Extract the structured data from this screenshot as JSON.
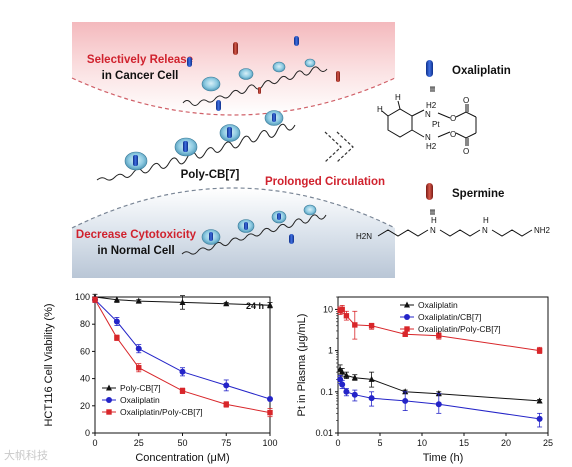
{
  "scheme": {
    "release_line1": "Selectively Release",
    "release_line2": "in Cancer Cell",
    "polymer_label": "Poly-CB[7]",
    "circulation_label": "Prolonged Circulation",
    "decrease_line1": "Decrease Cytotoxicity",
    "decrease_line2": "in Normal Cell",
    "oxaliplatin_label": "Oxaliplatin",
    "spermine_label": "Spermine",
    "equiv_symbol": "III",
    "struct_ox": {
      "h2_top": "H2",
      "n_top": "N",
      "pt": "Pt",
      "n_bot": "N",
      "h2_bot": "H2",
      "o1": "O",
      "o2": "O",
      "o3": "O",
      "o4": "O",
      "h1": "H",
      "h2": "H"
    },
    "struct_sp": {
      "nh2_left": "H2N",
      "nh_a": "N",
      "h_a": "H",
      "nh_b": "N",
      "h_b": "H",
      "nh2_right": "NH2"
    },
    "colors": {
      "release_red": "#d0222e",
      "oxaliplatin_blue": "#1f4fb8",
      "spermine_red": "#b0342a",
      "cb_ring": "#7fc4de"
    }
  },
  "watermark": "大帆科技",
  "chart_data": [
    {
      "type": "line",
      "title": "",
      "annotation": "24 h",
      "xlabel": "Concentration (μM)",
      "ylabel": "HCT116 Cell Viability (%)",
      "xlim": [
        0,
        100
      ],
      "ylim": [
        0,
        100
      ],
      "x_ticks": [
        0,
        25,
        50,
        75,
        100
      ],
      "y_ticks": [
        0,
        20,
        40,
        60,
        80,
        100
      ],
      "legend_position": "bottom-left",
      "series": [
        {
          "name": "Poly-CB[7]",
          "color": "#111111",
          "marker": "triangle",
          "x": [
            0,
            12.5,
            25,
            50,
            75,
            100
          ],
          "y": [
            100,
            98,
            97,
            96,
            95,
            94
          ],
          "err": [
            2,
            2,
            1,
            5,
            1,
            2
          ]
        },
        {
          "name": "Oxaliplatin",
          "color": "#2424c8",
          "marker": "circle",
          "x": [
            0,
            12.5,
            25,
            50,
            75,
            100
          ],
          "y": [
            98,
            82,
            62,
            45,
            35,
            25
          ],
          "err": [
            2,
            3,
            3,
            3,
            4,
            1
          ]
        },
        {
          "name": "Oxaliplatin/Poly-CB[7]",
          "color": "#d8262a",
          "marker": "square",
          "x": [
            0,
            12.5,
            25,
            50,
            75,
            100
          ],
          "y": [
            98,
            70,
            48,
            31,
            21,
            15
          ],
          "err": [
            2,
            2,
            3,
            2,
            2,
            3
          ]
        }
      ]
    },
    {
      "type": "line",
      "title": "",
      "xlabel": "Time (h)",
      "ylabel": "Pt in Plasma (μg/mL)",
      "xlim": [
        0,
        25
      ],
      "ylim": [
        0.01,
        20
      ],
      "y_scale": "log",
      "x_ticks": [
        0,
        5,
        10,
        15,
        20,
        25
      ],
      "y_ticks": [
        0.01,
        0.1,
        1,
        10
      ],
      "y_tick_labels": [
        "0.01",
        "0.1",
        "1",
        "10"
      ],
      "legend_position": "top-right",
      "series": [
        {
          "name": "Oxaliplatin",
          "color": "#111111",
          "marker": "triangle",
          "x": [
            0.25,
            0.5,
            1,
            2,
            4,
            8,
            12,
            24
          ],
          "y": [
            0.35,
            0.3,
            0.25,
            0.22,
            0.2,
            0.1,
            0.09,
            0.06
          ],
          "err_lo": [
            0.27,
            0.24,
            0.21,
            0.19,
            0.13,
            0.09,
            0.08,
            0.055
          ],
          "err_hi": [
            0.45,
            0.37,
            0.3,
            0.26,
            0.3,
            0.11,
            0.1,
            0.065
          ]
        },
        {
          "name": "Oxaliplatin/CB[7]",
          "color": "#2424c8",
          "marker": "circle",
          "x": [
            0.25,
            0.5,
            1,
            2,
            4,
            8,
            12,
            24
          ],
          "y": [
            0.2,
            0.15,
            0.1,
            0.085,
            0.07,
            0.06,
            0.05,
            0.022
          ],
          "err_lo": [
            0.16,
            0.12,
            0.08,
            0.06,
            0.045,
            0.035,
            0.03,
            0.014
          ],
          "err_hi": [
            0.25,
            0.19,
            0.12,
            0.11,
            0.1,
            0.1,
            0.09,
            0.03
          ]
        },
        {
          "name": "Oxaliplatin/Poly-CB[7]",
          "color": "#d8262a",
          "marker": "square",
          "x": [
            0.25,
            0.5,
            1,
            2,
            4,
            8,
            12,
            24
          ],
          "y": [
            9.5,
            10,
            7,
            4.2,
            4,
            2.5,
            2.3,
            1
          ],
          "err_lo": [
            7.5,
            8,
            5.5,
            1.9,
            3.3,
            2.2,
            1.9,
            0.85
          ],
          "err_hi": [
            11.5,
            12.5,
            9,
            9,
            4.6,
            2.8,
            2.7,
            1.2
          ]
        }
      ]
    }
  ]
}
